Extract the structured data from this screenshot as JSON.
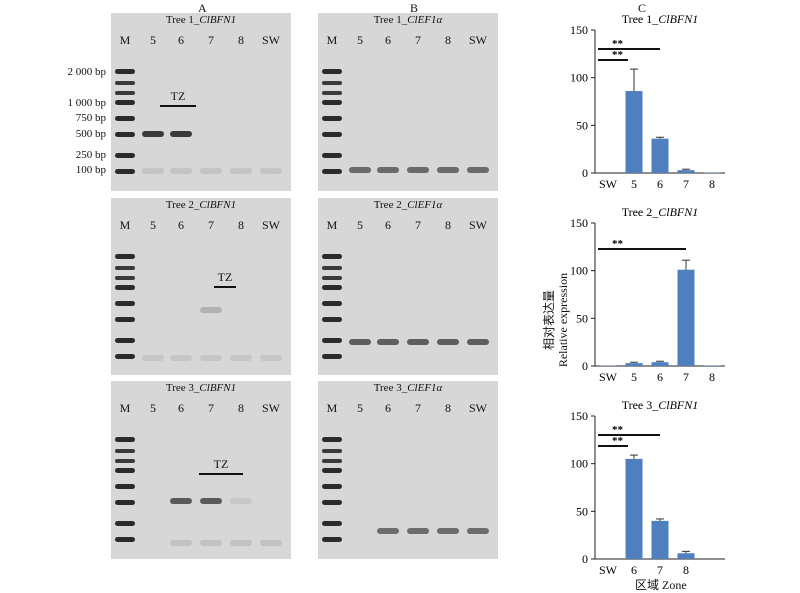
{
  "panel_letters": [
    "A",
    "B",
    "C"
  ],
  "ladder_labels": [
    "2 000 bp",
    "1 000 bp",
    "750 bp",
    "500 bp",
    "250 bp",
    "100 bp"
  ],
  "gels": [
    {
      "title_plain": "Tree 1_",
      "title_gene": "ClBFN1",
      "lanes": [
        "M",
        "5",
        "6",
        "7",
        "8",
        "SW"
      ],
      "tz": "TZ"
    },
    {
      "title_plain": "Tree 1_",
      "title_gene": "ClEF1α",
      "lanes": [
        "M",
        "5",
        "6",
        "7",
        "8",
        "SW"
      ]
    },
    {
      "title_plain": "Tree 2_",
      "title_gene": "ClBFN1",
      "lanes": [
        "M",
        "5",
        "6",
        "7",
        "8",
        "SW"
      ],
      "tz": "TZ"
    },
    {
      "title_plain": "Tree 2_",
      "title_gene": "ClEF1α",
      "lanes": [
        "M",
        "5",
        "6",
        "7",
        "8",
        "SW"
      ]
    },
    {
      "title_plain": "Tree 3_",
      "title_gene": "ClBFN1",
      "lanes": [
        "M",
        "5",
        "6",
        "7",
        "8",
        "SW"
      ],
      "tz": "TZ"
    },
    {
      "title_plain": "Tree 3_",
      "title_gene": "ClEF1α",
      "lanes": [
        "M",
        "5",
        "6",
        "7",
        "8",
        "SW"
      ]
    }
  ],
  "y_axis_label_cn": "相对表达量",
  "y_axis_label_en": "Relative expression",
  "x_axis_label": "区域 Zone",
  "chart_data": [
    {
      "type": "bar",
      "title_plain": "Tree 1_",
      "title_gene": "ClBFN1",
      "categories": [
        "SW",
        "5",
        "6",
        "7",
        "8"
      ],
      "values": [
        0,
        86,
        36,
        3,
        0.5
      ],
      "errors": [
        0,
        23,
        1.5,
        1,
        0
      ],
      "ylim": [
        0,
        150
      ],
      "yticks": [
        "0",
        "50",
        "100",
        "150"
      ],
      "significance": [
        {
          "from": "SW",
          "to": "5",
          "label": "**"
        },
        {
          "from": "SW",
          "to": "6",
          "label": "**"
        }
      ]
    },
    {
      "type": "bar",
      "title_plain": "Tree 2_",
      "title_gene": "ClBFN1",
      "categories": [
        "SW",
        "5",
        "6",
        "7",
        "8"
      ],
      "values": [
        0.5,
        3,
        4,
        101,
        0.5
      ],
      "errors": [
        0,
        1,
        1,
        10,
        0
      ],
      "ylim": [
        0,
        150
      ],
      "yticks": [
        "0",
        "50",
        "100",
        "150"
      ],
      "significance": [
        {
          "from": "SW",
          "to": "7",
          "label": "**"
        }
      ]
    },
    {
      "type": "bar",
      "title_plain": "Tree 3_",
      "title_gene": "ClBFN1",
      "categories": [
        "SW",
        "6",
        "7",
        "8"
      ],
      "values": [
        0,
        105,
        40,
        6
      ],
      "errors": [
        0,
        4,
        2,
        2
      ],
      "ylim": [
        0,
        150
      ],
      "yticks": [
        "0",
        "50",
        "100",
        "150"
      ],
      "significance": [
        {
          "from": "SW",
          "to": "6",
          "label": "**"
        },
        {
          "from": "SW",
          "to": "7",
          "label": "**"
        }
      ]
    }
  ]
}
